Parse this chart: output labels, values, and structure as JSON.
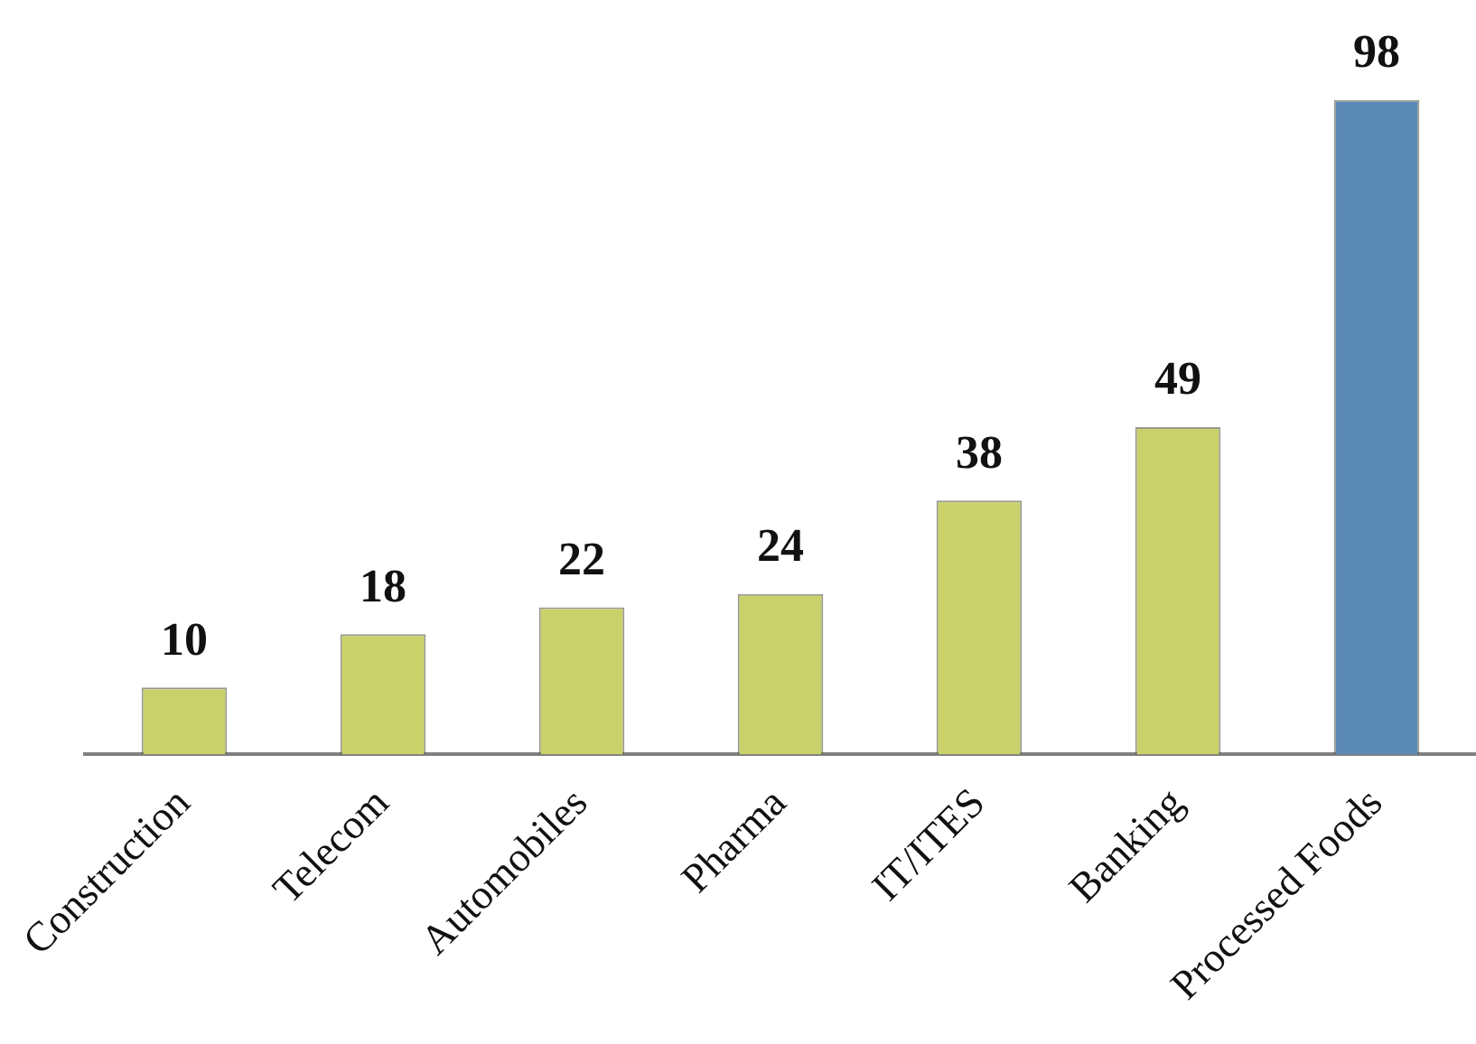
{
  "chart_data": {
    "type": "bar",
    "categories": [
      "Construction",
      "Telecom",
      "Automobiles",
      "Pharma",
      "IT/ITES",
      "Banking",
      "Processed Foods"
    ],
    "values": [
      10,
      18,
      22,
      24,
      38,
      49,
      98
    ],
    "colors": [
      "#c9d26a",
      "#c9d26a",
      "#c9d26a",
      "#c9d26a",
      "#c9d26a",
      "#c9d26a",
      "#5b89b5"
    ],
    "data_labels": true
  }
}
